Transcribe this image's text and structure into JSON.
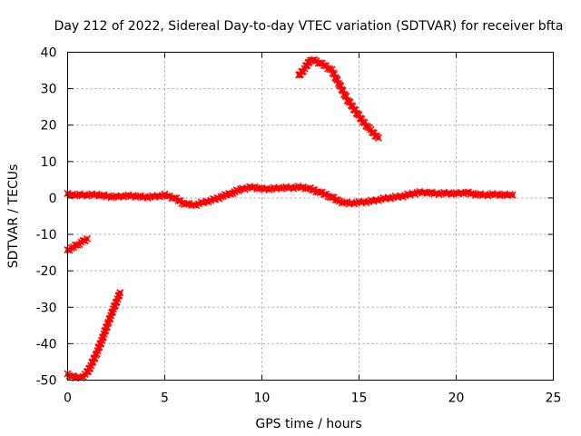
{
  "chart_data": {
    "type": "scatter",
    "title": "Day 212 of 2022, Sidereal Day-to-day VTEC variation (SDTVAR) for receiver bfta",
    "xlabel": "GPS time / hours",
    "ylabel": "SDTVAR / TECUs",
    "xlim": [
      0,
      25
    ],
    "ylim": [
      -50,
      40
    ],
    "xticks": [
      0,
      5,
      10,
      15,
      20,
      25
    ],
    "yticks": [
      -50,
      -40,
      -30,
      -20,
      -10,
      0,
      10,
      20,
      30,
      40
    ],
    "grid": true,
    "marker": "x",
    "series": [
      {
        "name": "bfta",
        "color": "#ff0000",
        "segments": [
          {
            "x": [
              0.0,
              0.3,
              0.6,
              0.8,
              1.0
            ],
            "y": [
              -14.5,
              -13.5,
              -12.5,
              -11.8,
              -11.2
            ]
          },
          {
            "x": [
              0.0,
              0.2,
              0.4,
              0.6,
              0.8,
              1.0,
              1.2,
              1.5,
              1.8,
              2.1,
              2.4,
              2.7
            ],
            "y": [
              -48.5,
              -49.0,
              -49.2,
              -49.3,
              -49.0,
              -48.0,
              -46.0,
              -42.5,
              -38.5,
              -34.0,
              -30.0,
              -26.0
            ]
          },
          {
            "x": [
              0.0,
              0.5,
              1.0,
              1.5,
              2.0,
              2.5,
              3.0,
              3.5,
              4.0,
              4.5,
              5.0,
              5.5,
              6.0,
              6.5,
              7.0,
              7.5,
              8.0,
              8.5,
              9.0,
              9.5,
              10.0,
              10.5,
              11.0,
              11.5,
              12.0,
              12.5,
              13.0,
              13.5,
              14.0,
              14.5,
              15.0,
              15.5,
              16.0,
              16.5,
              17.0,
              17.5,
              18.0,
              18.5,
              19.0,
              19.5,
              20.0,
              20.5,
              21.0,
              21.5,
              22.0,
              22.5,
              22.9
            ],
            "y": [
              1.0,
              0.8,
              0.8,
              0.9,
              0.5,
              0.3,
              0.6,
              0.5,
              0.2,
              0.4,
              0.8,
              0.0,
              -1.5,
              -2.0,
              -1.2,
              -0.5,
              0.5,
              1.5,
              2.5,
              3.0,
              2.5,
              2.5,
              2.8,
              2.8,
              3.0,
              2.5,
              1.5,
              0.5,
              -1.0,
              -1.5,
              -1.2,
              -1.0,
              -0.5,
              0.0,
              0.3,
              0.8,
              1.5,
              1.5,
              1.2,
              1.3,
              1.2,
              1.5,
              1.0,
              0.8,
              1.0,
              0.8,
              0.8
            ]
          },
          {
            "x": [
              11.9,
              12.2,
              12.5,
              12.8,
              13.2,
              13.6,
              14.0,
              14.4,
              14.8,
              15.2,
              15.6,
              16.0
            ],
            "y": [
              33.5,
              35.5,
              38.0,
              37.5,
              36.5,
              35.0,
              31.0,
              27.0,
              24.0,
              21.0,
              18.5,
              16.5
            ]
          }
        ]
      }
    ]
  }
}
